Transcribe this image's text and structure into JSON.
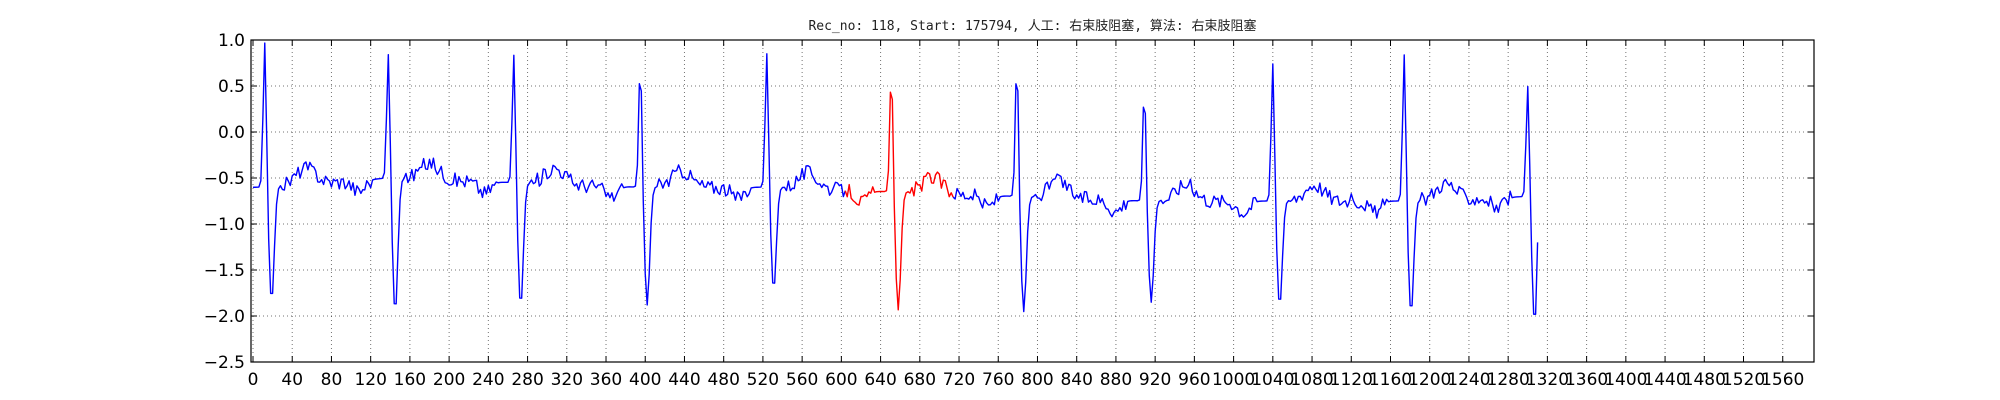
{
  "chart_data": {
    "type": "line",
    "title": "Rec_no: 118, Start: 175794, 人工: 右束肢阻塞, 算法: 右束肢阻塞",
    "xlabel": "",
    "ylabel": "",
    "xlim": [
      0,
      1600
    ],
    "ylim": [
      -2.5,
      1.0
    ],
    "yticks": [
      1.0,
      0.5,
      0.0,
      -0.5,
      -1.0,
      -1.5,
      -2.0,
      -2.5
    ],
    "ytick_labels": [
      "1.0",
      "0.5",
      "0.0",
      "−0.5",
      "−1.0",
      "−1.5",
      "−2.0",
      "−2.5"
    ],
    "xticks": [
      0,
      40,
      80,
      120,
      160,
      200,
      240,
      280,
      320,
      360,
      400,
      440,
      480,
      520,
      560,
      600,
      640,
      680,
      720,
      760,
      800,
      840,
      880,
      920,
      960,
      1000,
      1040,
      1080,
      1120,
      1160,
      1200,
      1240,
      1280,
      1320,
      1360,
      1400,
      1440,
      1480,
      1520,
      1560,
      1600
    ],
    "xtick_labels": [
      "0",
      "40",
      "80",
      "120",
      "160",
      "200",
      "240",
      "280",
      "320",
      "360",
      "400",
      "440",
      "480",
      "520",
      "560",
      "600",
      "640",
      "680",
      "720",
      "760",
      "800",
      "840",
      "880",
      "920",
      "960",
      "1000",
      "1040",
      "1080",
      "1120",
      "1160",
      "1200",
      "1240",
      "1280",
      "1320",
      "1360",
      "1400",
      "1440",
      "1480",
      "1520",
      "1560",
      "1600"
    ],
    "grid": true,
    "beats": [
      {
        "x": 12,
        "peak": 1.0,
        "trough": -1.85,
        "base": -0.6,
        "color": "blue"
      },
      {
        "x": 138,
        "peak": 0.88,
        "trough": -1.97,
        "base": -0.5,
        "color": "blue"
      },
      {
        "x": 266,
        "peak": 0.87,
        "trough": -1.9,
        "base": -0.55,
        "color": "blue"
      },
      {
        "x": 395,
        "peak": 0.78,
        "trough": -1.88,
        "base": -0.6,
        "color": "blue"
      },
      {
        "x": 524,
        "peak": 0.88,
        "trough": -1.72,
        "base": -0.6,
        "color": "blue"
      },
      {
        "x": 651,
        "peak": 0.68,
        "trough": -1.93,
        "base": -0.65,
        "color": "red"
      },
      {
        "x": 779,
        "peak": 0.8,
        "trough": -1.95,
        "base": -0.7,
        "color": "blue"
      },
      {
        "x": 909,
        "peak": 0.5,
        "trough": -1.85,
        "base": -0.75,
        "color": "blue"
      },
      {
        "x": 1040,
        "peak": 0.77,
        "trough": -1.9,
        "base": -0.75,
        "color": "blue"
      },
      {
        "x": 1174,
        "peak": 0.87,
        "trough": -1.98,
        "base": -0.75,
        "color": "blue"
      },
      {
        "x": 1300,
        "peak": 0.53,
        "trough": -2.08,
        "base": -0.7,
        "color": "blue"
      }
    ],
    "red_segment": [
      604,
      712
    ],
    "x_end": 1310,
    "y_end": -1.2,
    "series": [
      {
        "color": "#0000ff"
      },
      {
        "color": "#ff0000"
      }
    ]
  }
}
